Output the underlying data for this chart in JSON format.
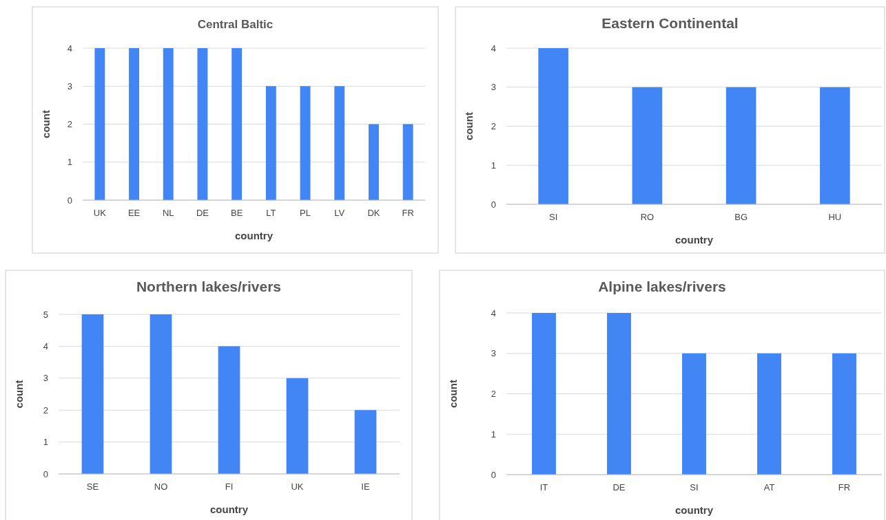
{
  "chart_data": [
    {
      "type": "bar",
      "title": "Central Baltic",
      "xlabel": "country",
      "ylabel": "count",
      "categories": [
        "UK",
        "EE",
        "NL",
        "DE",
        "BE",
        "LT",
        "PL",
        "LV",
        "DK",
        "FR"
      ],
      "values": [
        4,
        4,
        4,
        4,
        4,
        3,
        3,
        3,
        2,
        2
      ],
      "color": "#4285f4",
      "ylim": [
        0,
        4
      ],
      "yticks": [
        0,
        1,
        2,
        3,
        4
      ],
      "grid": "y"
    },
    {
      "type": "bar",
      "title": "Eastern Continental",
      "xlabel": "country",
      "ylabel": "count",
      "categories": [
        "SI",
        "RO",
        "BG",
        "HU"
      ],
      "values": [
        4,
        3,
        3,
        3
      ],
      "color": "#4285f4",
      "ylim": [
        0,
        4
      ],
      "yticks": [
        0,
        1,
        2,
        3,
        4
      ],
      "grid": "y"
    },
    {
      "type": "bar",
      "title": "Northern lakes/rivers",
      "xlabel": "country",
      "ylabel": "count",
      "categories": [
        "SE",
        "NO",
        "FI",
        "UK",
        "IE"
      ],
      "values": [
        5,
        5,
        4,
        3,
        2
      ],
      "color": "#4285f4",
      "ylim": [
        0,
        5
      ],
      "yticks": [
        0,
        1,
        2,
        3,
        4,
        5
      ],
      "grid": "y"
    },
    {
      "type": "bar",
      "title": "Alpine lakes/rivers",
      "xlabel": "country",
      "ylabel": "count",
      "categories": [
        "IT",
        "DE",
        "SI",
        "AT",
        "FR"
      ],
      "values": [
        4,
        4,
        3,
        3,
        3
      ],
      "color": "#4285f4",
      "ylim": [
        0,
        4
      ],
      "yticks": [
        0,
        1,
        2,
        3,
        4
      ],
      "grid": "y"
    }
  ]
}
